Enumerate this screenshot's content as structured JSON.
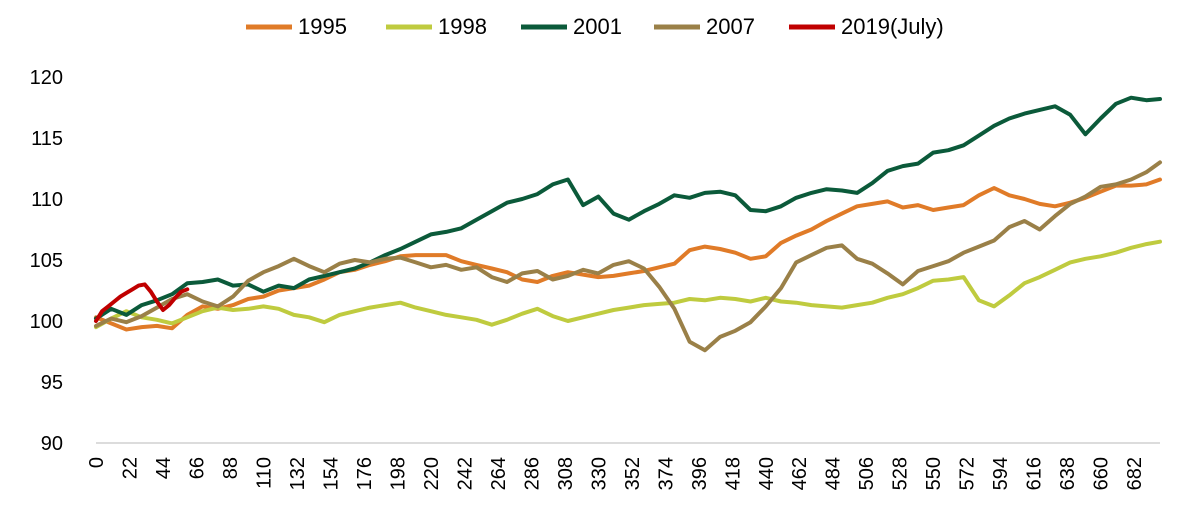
{
  "chart_data": {
    "type": "line",
    "title": "",
    "xlabel": "",
    "ylabel": "",
    "xlim": [
      0,
      699
    ],
    "ylim": [
      90,
      120
    ],
    "y_ticks": [
      "90",
      "95",
      "100",
      "105",
      "110",
      "115",
      "120"
    ],
    "x_ticks": [
      "0",
      "22",
      "44",
      "66",
      "88",
      "110",
      "132",
      "154",
      "176",
      "198",
      "220",
      "242",
      "264",
      "286",
      "308",
      "330",
      "352",
      "374",
      "396",
      "418",
      "440",
      "462",
      "484",
      "506",
      "528",
      "550",
      "572",
      "594",
      "616",
      "638",
      "660",
      "682"
    ],
    "grid": false,
    "legend_position": "top",
    "series": [
      {
        "name": "1995",
        "color": "#E07B28",
        "x": [
          0,
          10,
          20,
          30,
          40,
          50,
          60,
          70,
          80,
          90,
          100,
          110,
          120,
          130,
          140,
          150,
          160,
          170,
          180,
          190,
          200,
          210,
          220,
          230,
          240,
          250,
          260,
          270,
          280,
          290,
          300,
          310,
          320,
          330,
          340,
          350,
          360,
          370,
          380,
          390,
          400,
          410,
          420,
          430,
          440,
          450,
          460,
          470,
          480,
          490,
          500,
          510,
          520,
          530,
          540,
          550,
          560,
          570,
          580,
          590,
          600,
          610,
          620,
          630,
          640,
          650,
          660,
          670,
          680,
          690,
          699
        ],
        "y": [
          100.3,
          99.8,
          99.3,
          99.5,
          99.6,
          99.4,
          100.5,
          101.2,
          101.0,
          101.3,
          101.8,
          102.0,
          102.5,
          102.7,
          102.9,
          103.4,
          104.0,
          104.2,
          104.6,
          104.9,
          105.3,
          105.4,
          105.4,
          105.4,
          104.9,
          104.6,
          104.3,
          104.0,
          103.4,
          103.2,
          103.7,
          104.0,
          103.8,
          103.6,
          103.7,
          103.9,
          104.1,
          104.4,
          104.7,
          105.8,
          106.1,
          105.9,
          105.6,
          105.1,
          105.3,
          106.4,
          107.0,
          107.5,
          108.2,
          108.8,
          109.4,
          109.6,
          109.8,
          109.3,
          109.5,
          109.1,
          109.3,
          109.5,
          110.3,
          110.9,
          110.3,
          110.0,
          109.6,
          109.4,
          109.7,
          110.1,
          110.6,
          111.1,
          111.1,
          111.2,
          111.6
        ]
      },
      {
        "name": "1998",
        "color": "#BFCB3F",
        "x": [
          0,
          10,
          20,
          30,
          40,
          50,
          60,
          70,
          80,
          90,
          100,
          110,
          120,
          130,
          140,
          150,
          160,
          170,
          180,
          190,
          200,
          210,
          220,
          230,
          240,
          250,
          260,
          270,
          280,
          290,
          300,
          310,
          320,
          330,
          340,
          350,
          360,
          370,
          380,
          390,
          400,
          410,
          420,
          430,
          440,
          450,
          460,
          470,
          480,
          490,
          500,
          510,
          520,
          530,
          540,
          550,
          560,
          570,
          580,
          590,
          600,
          610,
          620,
          630,
          640,
          650,
          660,
          670,
          680,
          690,
          699
        ],
        "y": [
          99.5,
          100.2,
          100.8,
          100.3,
          100.1,
          99.8,
          100.3,
          100.8,
          101.1,
          100.9,
          101.0,
          101.2,
          101.0,
          100.5,
          100.3,
          99.9,
          100.5,
          100.8,
          101.1,
          101.3,
          101.5,
          101.1,
          100.8,
          100.5,
          100.3,
          100.1,
          99.7,
          100.1,
          100.6,
          101.0,
          100.4,
          100.0,
          100.3,
          100.6,
          100.9,
          101.1,
          101.3,
          101.4,
          101.5,
          101.8,
          101.7,
          101.9,
          101.8,
          101.6,
          101.9,
          101.6,
          101.5,
          101.3,
          101.2,
          101.1,
          101.3,
          101.5,
          101.9,
          102.2,
          102.7,
          103.3,
          103.4,
          103.6,
          101.7,
          101.2,
          102.1,
          103.1,
          103.6,
          104.2,
          104.8,
          105.1,
          105.3,
          105.6,
          106.0,
          106.3,
          106.5
        ]
      },
      {
        "name": "2001",
        "color": "#0B5A3A",
        "x": [
          0,
          10,
          20,
          30,
          40,
          50,
          60,
          70,
          80,
          90,
          100,
          110,
          120,
          130,
          140,
          150,
          160,
          170,
          180,
          190,
          200,
          210,
          220,
          230,
          240,
          250,
          260,
          270,
          280,
          290,
          300,
          310,
          320,
          330,
          340,
          350,
          360,
          370,
          380,
          390,
          400,
          410,
          420,
          430,
          440,
          450,
          460,
          470,
          480,
          490,
          500,
          510,
          520,
          530,
          540,
          550,
          560,
          570,
          580,
          590,
          600,
          610,
          620,
          630,
          640,
          650,
          660,
          670,
          680,
          690,
          699
        ],
        "y": [
          100.2,
          101.0,
          100.5,
          101.3,
          101.7,
          102.2,
          103.1,
          103.2,
          103.4,
          102.9,
          103.0,
          102.4,
          102.9,
          102.7,
          103.4,
          103.7,
          104.0,
          104.3,
          104.8,
          105.4,
          105.9,
          106.5,
          107.1,
          107.3,
          107.6,
          108.3,
          109.0,
          109.7,
          110.0,
          110.4,
          111.2,
          111.6,
          109.5,
          110.2,
          108.8,
          108.3,
          109.0,
          109.6,
          110.3,
          110.1,
          110.5,
          110.6,
          110.3,
          109.1,
          109.0,
          109.4,
          110.1,
          110.5,
          110.8,
          110.7,
          110.5,
          111.3,
          112.3,
          112.7,
          112.9,
          113.8,
          114.0,
          114.4,
          115.2,
          116.0,
          116.6,
          117.0,
          117.3,
          117.6,
          116.9,
          115.3,
          116.6,
          117.8,
          118.3,
          118.1,
          118.2
        ]
      },
      {
        "name": "2007",
        "color": "#9A8048",
        "x": [
          0,
          10,
          20,
          30,
          40,
          50,
          60,
          70,
          80,
          90,
          100,
          110,
          120,
          130,
          140,
          150,
          160,
          170,
          180,
          190,
          200,
          210,
          220,
          230,
          240,
          250,
          260,
          270,
          280,
          290,
          300,
          310,
          320,
          330,
          340,
          350,
          360,
          370,
          380,
          390,
          400,
          410,
          420,
          430,
          440,
          450,
          460,
          470,
          480,
          490,
          500,
          510,
          520,
          530,
          540,
          550,
          560,
          570,
          580,
          590,
          600,
          610,
          620,
          630,
          640,
          650,
          660,
          670,
          680,
          690,
          699
        ],
        "y": [
          99.6,
          100.2,
          99.9,
          100.4,
          101.1,
          101.8,
          102.2,
          101.6,
          101.2,
          102.0,
          103.3,
          104.0,
          104.5,
          105.1,
          104.5,
          104.0,
          104.7,
          105.0,
          104.8,
          105.1,
          105.2,
          104.8,
          104.4,
          104.6,
          104.2,
          104.4,
          103.6,
          103.2,
          103.9,
          104.1,
          103.4,
          103.7,
          104.2,
          103.9,
          104.6,
          104.9,
          104.3,
          102.8,
          101.0,
          98.3,
          97.6,
          98.7,
          99.2,
          99.9,
          101.2,
          102.7,
          104.8,
          105.4,
          106.0,
          106.2,
          105.1,
          104.7,
          103.9,
          103.0,
          104.1,
          104.5,
          104.9,
          105.6,
          106.1,
          106.6,
          107.7,
          108.2,
          107.5,
          108.6,
          109.6,
          110.2,
          111.0,
          111.2,
          111.6,
          112.2,
          113.0
        ]
      },
      {
        "name": "2019(July)",
        "color": "#C00000",
        "x": [
          0,
          4,
          8,
          12,
          16,
          20,
          24,
          28,
          32,
          36,
          40,
          44,
          48,
          52,
          56,
          60
        ],
        "y": [
          100.0,
          100.8,
          101.2,
          101.6,
          102.0,
          102.3,
          102.6,
          102.9,
          103.0,
          102.4,
          101.6,
          100.9,
          101.3,
          101.9,
          102.4,
          102.6
        ]
      }
    ]
  }
}
